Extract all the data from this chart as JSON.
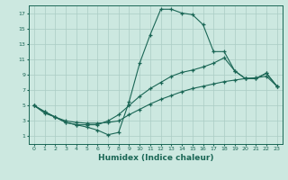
{
  "xlabel": "Humidex (Indice chaleur)",
  "background_color": "#cce8e0",
  "grid_color": "#aaccc4",
  "line_color": "#1a6655",
  "xlim": [
    -0.5,
    23.5
  ],
  "ylim": [
    0,
    18
  ],
  "xticks": [
    0,
    1,
    2,
    3,
    4,
    5,
    6,
    7,
    8,
    9,
    10,
    11,
    12,
    13,
    14,
    15,
    16,
    17,
    18,
    19,
    20,
    21,
    22,
    23
  ],
  "yticks": [
    1,
    3,
    5,
    7,
    9,
    11,
    13,
    15,
    17
  ],
  "line1_x": [
    0,
    1,
    2,
    3,
    4,
    5,
    6,
    7,
    8,
    9,
    10,
    11,
    12,
    13,
    14,
    15,
    16,
    17,
    18,
    19,
    20,
    21,
    22,
    23
  ],
  "line1_y": [
    5.0,
    4.0,
    3.5,
    2.8,
    2.5,
    2.2,
    1.8,
    1.2,
    1.5,
    5.5,
    10.5,
    14.2,
    17.5,
    17.5,
    17.0,
    16.8,
    15.5,
    12.0,
    12.0,
    9.5,
    8.5,
    8.5,
    9.2,
    7.5
  ],
  "line2_x": [
    0,
    1,
    2,
    3,
    4,
    5,
    6,
    7,
    8,
    9,
    10,
    11,
    12,
    13,
    14,
    15,
    16,
    17,
    18,
    19,
    20,
    21,
    22,
    23
  ],
  "line2_y": [
    5.0,
    4.2,
    3.5,
    2.8,
    2.5,
    2.5,
    2.5,
    3.0,
    3.8,
    5.0,
    6.2,
    7.2,
    8.0,
    8.8,
    9.3,
    9.6,
    10.0,
    10.5,
    11.2,
    9.5,
    8.5,
    8.5,
    9.2,
    7.5
  ],
  "line3_x": [
    0,
    1,
    2,
    3,
    4,
    5,
    6,
    7,
    8,
    9,
    10,
    11,
    12,
    13,
    14,
    15,
    16,
    17,
    18,
    19,
    20,
    21,
    22,
    23
  ],
  "line3_y": [
    5.0,
    4.2,
    3.5,
    3.0,
    2.8,
    2.7,
    2.7,
    2.8,
    3.0,
    3.8,
    4.5,
    5.2,
    5.8,
    6.3,
    6.8,
    7.2,
    7.5,
    7.8,
    8.1,
    8.3,
    8.5,
    8.6,
    8.8,
    7.5
  ]
}
